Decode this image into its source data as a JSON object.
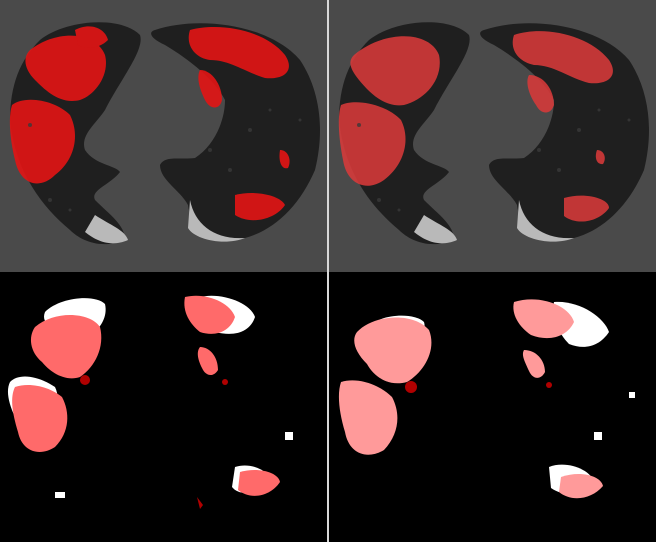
{
  "panels": [
    {
      "id": "tl",
      "kind": "ct-overlay"
    },
    {
      "id": "tr",
      "kind": "ct-overlay"
    },
    {
      "id": "bl",
      "kind": "mask"
    },
    {
      "id": "br",
      "kind": "mask"
    }
  ],
  "colors": {
    "background_ct": "#4a4a4a",
    "lung_tissue": "#1f1f1f",
    "overlay_red": "#e01515",
    "overlay_red_soft": "#d83a3a",
    "mask_salmon": "#ff6a6a",
    "mask_pink": "#ff9a9a",
    "mask_white": "#ffffff",
    "mask_dark_red": "#b00000",
    "divider": "#d8d8d8",
    "pleura_gray": "#b9b9b9"
  }
}
